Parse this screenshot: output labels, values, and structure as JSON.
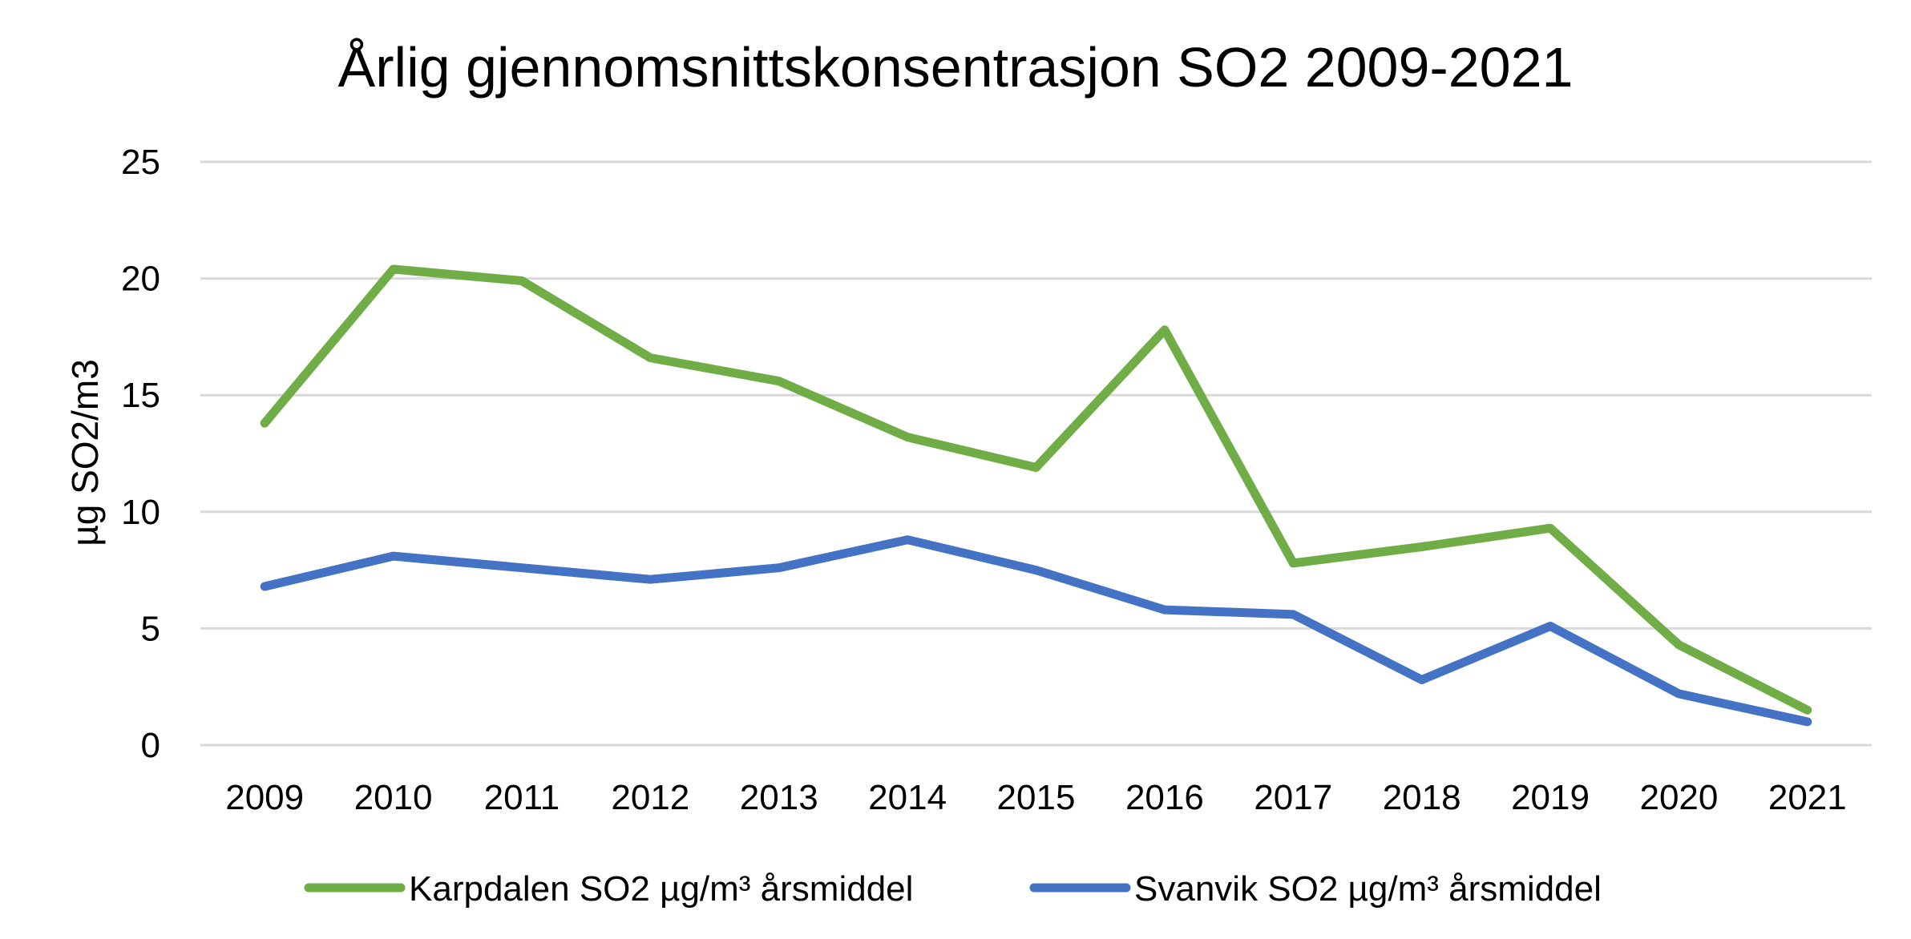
{
  "chart_data": {
    "type": "line",
    "title": "Årlig gjennomsnittskonsentrasjon SO2 2009-2021",
    "xlabel": "",
    "ylabel": "µg SO2/m3",
    "ylim": [
      0,
      25
    ],
    "yticks": [
      "0",
      "5",
      "10",
      "15",
      "20",
      "25"
    ],
    "grid": true,
    "legend_position": "bottom",
    "categories": [
      "2009",
      "2010",
      "2011",
      "2012",
      "2013",
      "2014",
      "2015",
      "2016",
      "2017",
      "2018",
      "2019",
      "2020",
      "2021"
    ],
    "series": [
      {
        "name": "Karpdalen SO2 µg/m³ årsmiddel",
        "color": "#70AD47",
        "values": [
          13.8,
          20.4,
          19.9,
          16.6,
          15.6,
          13.2,
          11.9,
          17.8,
          7.8,
          8.5,
          9.3,
          4.3,
          1.5
        ]
      },
      {
        "name": "Svanvik SO2 µg/m³ årsmiddel",
        "color": "#4472C4",
        "values": [
          6.8,
          8.1,
          7.6,
          7.1,
          7.6,
          8.8,
          7.5,
          5.8,
          5.6,
          2.8,
          5.1,
          2.2,
          1.0
        ]
      }
    ]
  }
}
